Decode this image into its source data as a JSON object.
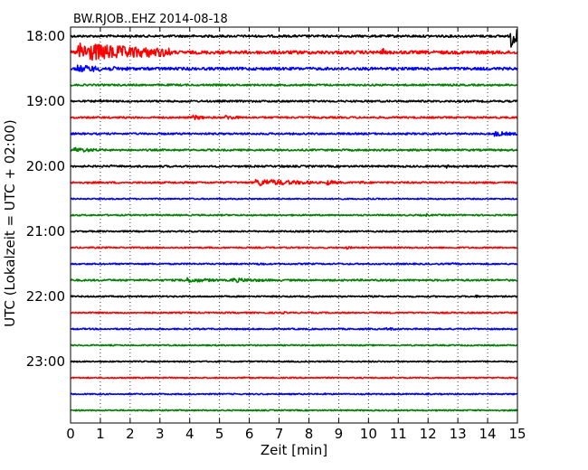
{
  "chart_data": {
    "type": "line",
    "title": "BW.RJOB..EHZ 2014-08-18",
    "xlabel": "Zeit  [min]",
    "ylabel": "UTC (Lokalzeit = UTC + 02:00)",
    "xlim": [
      0,
      15
    ],
    "x_ticks": [
      "0",
      "1",
      "2",
      "3",
      "4",
      "5",
      "6",
      "7",
      "8",
      "9",
      "10",
      "11",
      "12",
      "13",
      "14",
      "15"
    ],
    "y_tick_labels": [
      "18:00",
      "19:00",
      "20:00",
      "21:00",
      "22:00",
      "23:00"
    ],
    "grid": "vertical dotted",
    "colors": [
      "#000000",
      "#ff0000",
      "#0000ff",
      "#008000"
    ],
    "traces": [
      {
        "start": "18:00",
        "color": "#000000",
        "noise": 1.2,
        "events": [
          {
            "t": 14.75,
            "dur": 0.25,
            "amp": 16
          }
        ]
      },
      {
        "start": "18:15",
        "color": "#ff0000",
        "noise": 1.8,
        "events": [
          {
            "t": 0.2,
            "dur": 3.2,
            "amp": 11
          },
          {
            "t": 10.45,
            "dur": 0.06,
            "amp": 9
          },
          {
            "t": 4.5,
            "dur": 1.5,
            "amp": 2
          },
          {
            "t": 7.5,
            "dur": 2.5,
            "amp": 2
          }
        ]
      },
      {
        "start": "18:30",
        "color": "#0000ff",
        "noise": 1.5,
        "events": [
          {
            "t": 0.2,
            "dur": 2.0,
            "amp": 4
          }
        ]
      },
      {
        "start": "18:45",
        "color": "#008000",
        "noise": 1.0,
        "events": []
      },
      {
        "start": "19:00",
        "color": "#000000",
        "noise": 1.0,
        "events": [
          {
            "t": 1.0,
            "dur": 0.4,
            "amp": 2
          }
        ]
      },
      {
        "start": "19:15",
        "color": "#ff0000",
        "noise": 1.0,
        "events": [
          {
            "t": 4.1,
            "dur": 0.5,
            "amp": 3
          },
          {
            "t": 5.2,
            "dur": 0.5,
            "amp": 3
          }
        ]
      },
      {
        "start": "19:30",
        "color": "#0000ff",
        "noise": 1.0,
        "events": [
          {
            "t": 14.2,
            "dur": 0.8,
            "amp": 3
          }
        ]
      },
      {
        "start": "19:45",
        "color": "#008000",
        "noise": 1.0,
        "events": [
          {
            "t": 0.1,
            "dur": 1.0,
            "amp": 3
          }
        ]
      },
      {
        "start": "20:00",
        "color": "#000000",
        "noise": 1.0,
        "events": [
          {
            "t": 1.3,
            "dur": 0.2,
            "amp": 2
          },
          {
            "t": 7.0,
            "dur": 0.3,
            "amp": 2
          },
          {
            "t": 12.6,
            "dur": 0.4,
            "amp": 2
          }
        ]
      },
      {
        "start": "20:15",
        "color": "#ff0000",
        "noise": 1.0,
        "events": [
          {
            "t": 6.2,
            "dur": 2.0,
            "amp": 4
          },
          {
            "t": 8.6,
            "dur": 0.5,
            "amp": 3
          },
          {
            "t": 9.7,
            "dur": 0.5,
            "amp": 2
          }
        ]
      },
      {
        "start": "20:30",
        "color": "#0000ff",
        "noise": 0.7,
        "events": []
      },
      {
        "start": "20:45",
        "color": "#008000",
        "noise": 0.8,
        "events": [
          {
            "t": 11.9,
            "dur": 0.2,
            "amp": 2
          }
        ]
      },
      {
        "start": "21:00",
        "color": "#000000",
        "noise": 0.8,
        "events": []
      },
      {
        "start": "21:15",
        "color": "#ff0000",
        "noise": 0.8,
        "events": [
          {
            "t": 9.2,
            "dur": 0.3,
            "amp": 2
          }
        ]
      },
      {
        "start": "21:30",
        "color": "#0000ff",
        "noise": 0.8,
        "events": [
          {
            "t": 6.3,
            "dur": 0.3,
            "amp": 2
          },
          {
            "t": 12.8,
            "dur": 0.3,
            "amp": 1.5
          }
        ]
      },
      {
        "start": "21:45",
        "color": "#008000",
        "noise": 1.0,
        "events": [
          {
            "t": 3.8,
            "dur": 1.2,
            "amp": 3
          },
          {
            "t": 5.4,
            "dur": 1.5,
            "amp": 2.5
          }
        ]
      },
      {
        "start": "22:00",
        "color": "#000000",
        "noise": 0.8,
        "events": [
          {
            "t": 13.6,
            "dur": 0.3,
            "amp": 1.5
          }
        ]
      },
      {
        "start": "22:15",
        "color": "#ff0000",
        "noise": 0.8,
        "events": [
          {
            "t": 7.0,
            "dur": 0.5,
            "amp": 1.5
          }
        ]
      },
      {
        "start": "22:30",
        "color": "#0000ff",
        "noise": 0.8,
        "events": [
          {
            "t": 10.6,
            "dur": 0.4,
            "amp": 2
          }
        ]
      },
      {
        "start": "22:45",
        "color": "#008000",
        "noise": 0.7,
        "events": []
      },
      {
        "start": "23:00",
        "color": "#000000",
        "noise": 0.7,
        "events": []
      },
      {
        "start": "23:15",
        "color": "#ff0000",
        "noise": 0.7,
        "events": [
          {
            "t": 5.8,
            "dur": 0.3,
            "amp": 1.5
          }
        ]
      },
      {
        "start": "23:30",
        "color": "#0000ff",
        "noise": 0.7,
        "events": [
          {
            "t": 8.5,
            "dur": 0.3,
            "amp": 1.5
          }
        ]
      },
      {
        "start": "23:45",
        "color": "#008000",
        "noise": 0.7,
        "events": []
      }
    ]
  }
}
